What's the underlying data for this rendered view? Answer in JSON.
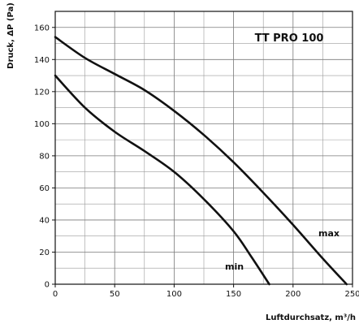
{
  "chart_data": {
    "type": "line",
    "title": "TT PRO 100",
    "xlabel": "Luftdurchsatz, m³/h",
    "ylabel": "Druck, ΔP (Pa)",
    "xlim": [
      0,
      250
    ],
    "ylim": [
      0,
      170
    ],
    "x_ticks": [
      0,
      50,
      100,
      150,
      200,
      250
    ],
    "y_ticks": [
      0,
      20,
      40,
      60,
      80,
      100,
      120,
      140,
      160
    ],
    "grid": true,
    "legend": "none",
    "series": [
      {
        "name": "max",
        "points": [
          [
            0,
            154
          ],
          [
            25,
            141
          ],
          [
            50,
            131
          ],
          [
            75,
            121
          ],
          [
            100,
            108
          ],
          [
            125,
            93
          ],
          [
            150,
            76
          ],
          [
            175,
            57
          ],
          [
            200,
            37
          ],
          [
            225,
            16
          ],
          [
            245,
            0
          ]
        ]
      },
      {
        "name": "min",
        "points": [
          [
            0,
            130
          ],
          [
            25,
            110
          ],
          [
            50,
            95
          ],
          [
            75,
            83
          ],
          [
            100,
            70
          ],
          [
            125,
            53
          ],
          [
            150,
            33
          ],
          [
            165,
            17
          ],
          [
            180,
            0
          ]
        ]
      }
    ]
  }
}
